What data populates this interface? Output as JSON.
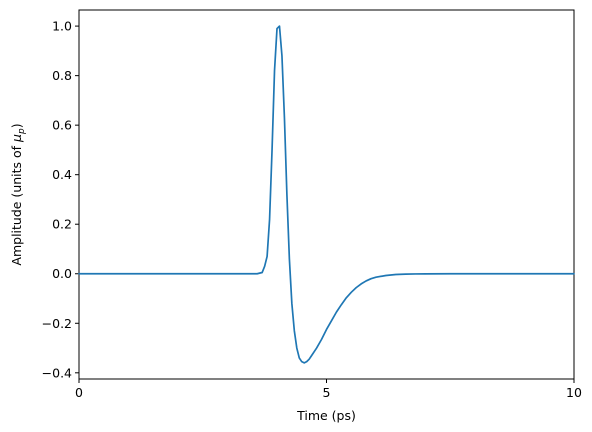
{
  "chart_data": {
    "type": "line",
    "xlabel": "Time (ps)",
    "ylabel_prefix": "Amplitude (units of ",
    "ylabel_symbol": "μ",
    "ylabel_subscript": "p",
    "ylabel_suffix": ")",
    "xlim": [
      0,
      10
    ],
    "ylim": [
      -0.425,
      1.065
    ],
    "xticks": [
      0,
      5,
      10
    ],
    "xtick_labels": [
      "0",
      "5",
      "10"
    ],
    "yticks": [
      -0.4,
      -0.2,
      0.0,
      0.2,
      0.4,
      0.6,
      0.8,
      1.0
    ],
    "ytick_labels": [
      "−0.4",
      "−0.2",
      "0.0",
      "0.2",
      "0.4",
      "0.6",
      "0.8",
      "1.0"
    ],
    "grid": false,
    "line_color": "#1f77b4",
    "series": [
      {
        "x": [
          0,
          0.5,
          1,
          1.5,
          2,
          2.5,
          3,
          3.5,
          3.6,
          3.7,
          3.75,
          3.8,
          3.85,
          3.9,
          3.95,
          4.0,
          4.05,
          4.1,
          4.15,
          4.2,
          4.25,
          4.3,
          4.35,
          4.4,
          4.45,
          4.5,
          4.55,
          4.6,
          4.65,
          4.7,
          4.8,
          4.9,
          5.0,
          5.1,
          5.2,
          5.3,
          5.4,
          5.5,
          5.6,
          5.7,
          5.8,
          5.9,
          6.0,
          6.2,
          6.4,
          6.6,
          6.8,
          7.0,
          7.5,
          8.0,
          9.0,
          10.0
        ],
        "y": [
          0,
          0,
          0,
          0,
          0,
          0,
          0,
          0,
          0,
          0.005,
          0.03,
          0.07,
          0.22,
          0.5,
          0.82,
          0.99,
          1.0,
          0.88,
          0.63,
          0.32,
          0.06,
          -0.12,
          -0.23,
          -0.3,
          -0.34,
          -0.355,
          -0.36,
          -0.355,
          -0.345,
          -0.33,
          -0.3,
          -0.265,
          -0.225,
          -0.19,
          -0.155,
          -0.125,
          -0.097,
          -0.075,
          -0.056,
          -0.041,
          -0.029,
          -0.02,
          -0.014,
          -0.007,
          -0.003,
          -0.0015,
          -0.0008,
          -0.0004,
          0,
          0,
          0,
          0
        ]
      }
    ]
  }
}
